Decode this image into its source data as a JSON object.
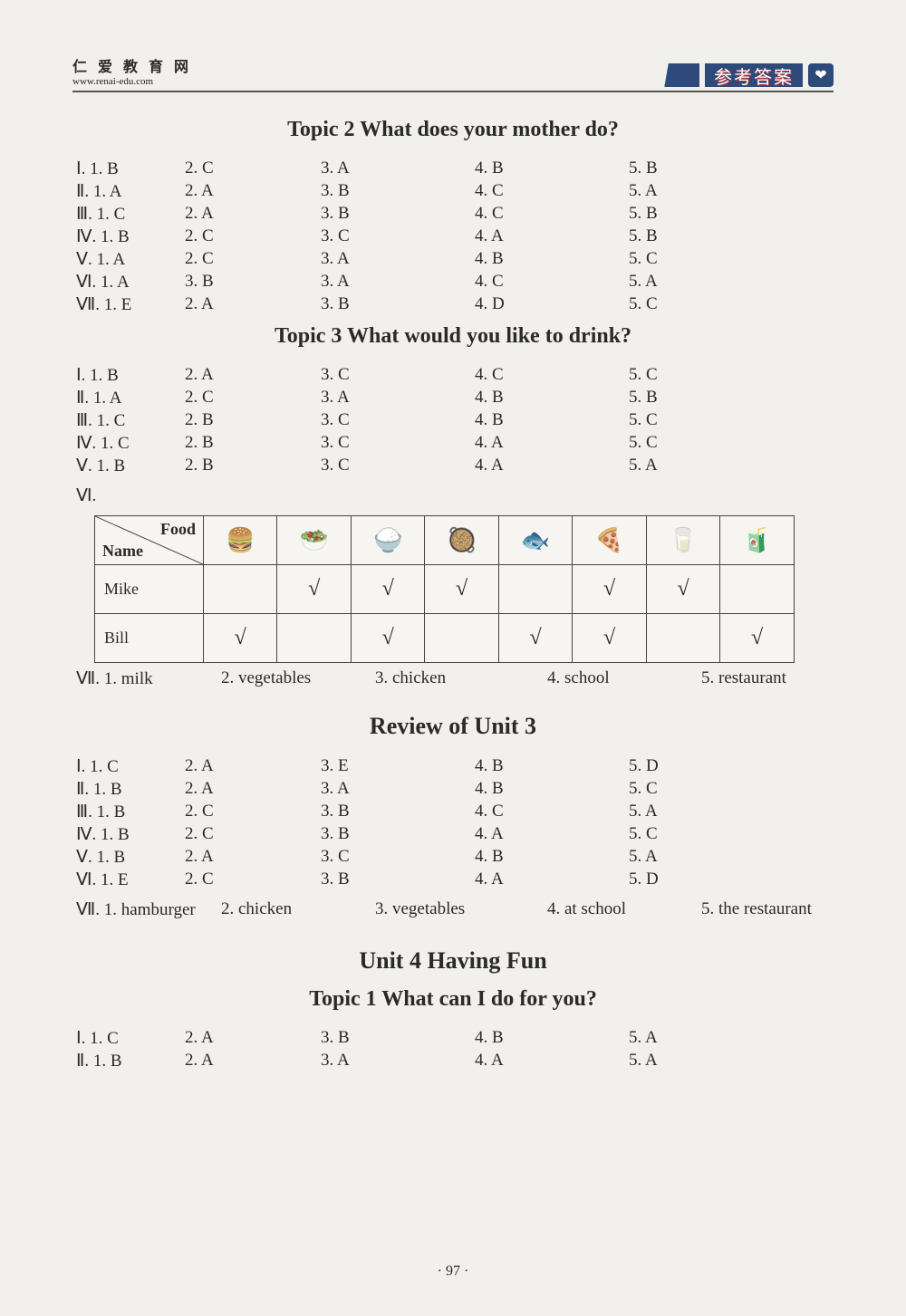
{
  "header": {
    "brand_cn": "仁 爱 教 育 网",
    "brand_url": "www.renai-edu.com",
    "ribbon_text": "参考答案",
    "ribbon_heart": "❤"
  },
  "topic2": {
    "title": "Topic 2   What does your mother do?",
    "rows": [
      {
        "rn": "Ⅰ",
        "a": [
          "1. B",
          "2. C",
          "3. A",
          "4. B",
          "5. B"
        ]
      },
      {
        "rn": "Ⅱ",
        "a": [
          "1. A",
          "2. A",
          "3. B",
          "4. C",
          "5. A"
        ]
      },
      {
        "rn": "Ⅲ",
        "a": [
          "1. C",
          "2. A",
          "3. B",
          "4. C",
          "5. B"
        ]
      },
      {
        "rn": "Ⅳ",
        "a": [
          "1. B",
          "2. C",
          "3. C",
          "4. A",
          "5. B"
        ]
      },
      {
        "rn": "Ⅴ",
        "a": [
          "1. A",
          "2. C",
          "3. A",
          "4. B",
          "5. C"
        ]
      },
      {
        "rn": "Ⅵ",
        "a": [
          "1. A",
          "3. B",
          "3. A",
          "4. C",
          "5. A"
        ]
      },
      {
        "rn": "Ⅶ",
        "a": [
          "1. E",
          "2. A",
          "3. B",
          "4. D",
          "5. C"
        ]
      }
    ]
  },
  "topic3": {
    "title": "Topic 3   What would you like to drink?",
    "rows": [
      {
        "rn": "Ⅰ",
        "a": [
          "1. B",
          "2. A",
          "3. C",
          "4. C",
          "5. C"
        ]
      },
      {
        "rn": "Ⅱ",
        "a": [
          "1. A",
          "2. C",
          "3. A",
          "4. B",
          "5. B"
        ]
      },
      {
        "rn": "Ⅲ",
        "a": [
          "1. C",
          "2. B",
          "3. C",
          "4. B",
          "5. C"
        ]
      },
      {
        "rn": "Ⅳ",
        "a": [
          "1. C",
          "2. B",
          "3. C",
          "4. A",
          "5. C"
        ]
      },
      {
        "rn": "Ⅴ",
        "a": [
          "1. B",
          "2. B",
          "3. C",
          "4. A",
          "5. A"
        ]
      }
    ],
    "vi_label": "Ⅵ.",
    "table": {
      "corner_food": "Food",
      "corner_name": "Name",
      "icons": [
        "🍔",
        "🥗",
        "🍚",
        "🥘",
        "🐟",
        "🍕",
        "🥛",
        "🧃"
      ],
      "rows": [
        {
          "name": "Mike",
          "cells": [
            "",
            "√",
            "√",
            "√",
            "",
            "√",
            "√",
            ""
          ]
        },
        {
          "name": "Bill",
          "cells": [
            "√",
            "",
            "√",
            "",
            "√",
            "√",
            "",
            "√"
          ]
        }
      ]
    },
    "vii": {
      "rn": "Ⅶ.",
      "a": [
        "1. milk",
        "2. vegetables",
        "3. chicken",
        "4. school",
        "5. restaurant"
      ]
    }
  },
  "review3": {
    "title": "Review of Unit 3",
    "rows": [
      {
        "rn": "Ⅰ",
        "a": [
          "1. C",
          "2. A",
          "3. E",
          "4. B",
          "5. D"
        ]
      },
      {
        "rn": "Ⅱ",
        "a": [
          "1. B",
          "2. A",
          "3. A",
          "4. B",
          "5. C"
        ]
      },
      {
        "rn": "Ⅲ",
        "a": [
          "1. B",
          "2. C",
          "3. B",
          "4. C",
          "5. A"
        ]
      },
      {
        "rn": "Ⅳ",
        "a": [
          "1. B",
          "2. C",
          "3. B",
          "4. A",
          "5. C"
        ]
      },
      {
        "rn": "Ⅴ",
        "a": [
          "1. B",
          "2. A",
          "3. C",
          "4. B",
          "5. A"
        ]
      },
      {
        "rn": "Ⅵ",
        "a": [
          "1. E",
          "2. C",
          "3. B",
          "4. A",
          "5. D"
        ]
      }
    ],
    "vii": {
      "rn": "Ⅶ.",
      "a": [
        "1. hamburger",
        "2. chicken",
        "3. vegetables",
        "4. at school",
        "5. the restaurant"
      ]
    }
  },
  "unit4": {
    "title": "Unit 4   Having Fun",
    "topic1_title": "Topic 1   What can I do for you?",
    "rows": [
      {
        "rn": "Ⅰ",
        "a": [
          "1. C",
          "2. A",
          "3. B",
          "4. B",
          "5. A"
        ]
      },
      {
        "rn": "Ⅱ",
        "a": [
          "1. B",
          "2. A",
          "3. A",
          "4. A",
          "5. A"
        ]
      }
    ]
  },
  "page_number": "· 97 ·"
}
